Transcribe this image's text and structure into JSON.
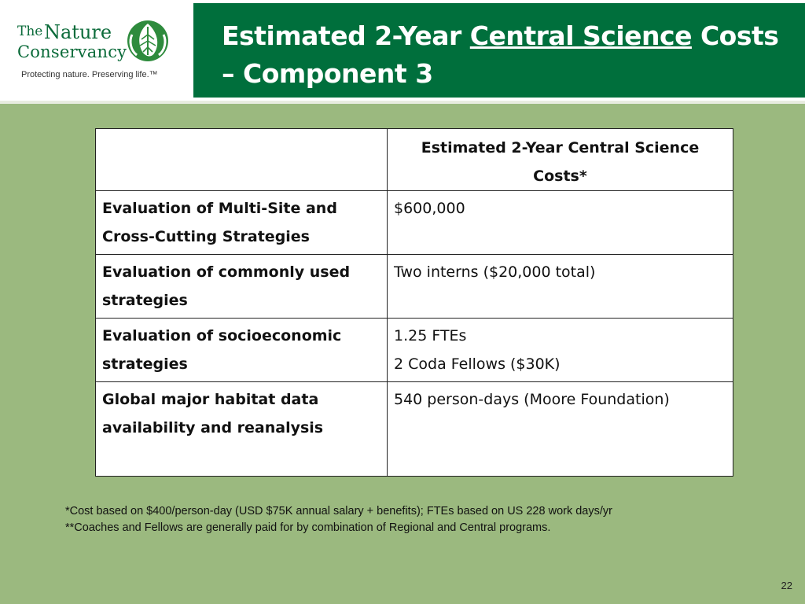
{
  "logo": {
    "the": "The",
    "nature": "Nature",
    "conservancy": "Conservancy",
    "tagline": "Protecting nature. Preserving life.™"
  },
  "title": {
    "part1": "Estimated 2-Year ",
    "underlined": "Central Science",
    "part2": " Costs – Component 3"
  },
  "table": {
    "header": [
      "",
      "Estimated 2-Year Central Science Costs*"
    ],
    "rows": [
      {
        "label": "Evaluation of Multi-Site and Cross-Cutting Strategies",
        "value": [
          "$600,000"
        ]
      },
      {
        "label": "Evaluation of commonly used strategies",
        "value": [
          "Two interns ($20,000 total)"
        ]
      },
      {
        "label": "Evaluation of socioeconomic strategies",
        "value": [
          "1.25 FTEs",
          "2 Coda Fellows ($30K)"
        ]
      },
      {
        "label": "Global major habitat data availability and reanalysis",
        "value": [
          "540 person-days (Moore Foundation)"
        ]
      }
    ]
  },
  "notes": [
    "*Cost based on $400/person-day (USD $75K annual salary + benefits); FTEs based on US 228 work days/yr",
    "**Coaches and Fellows are generally paid for by combination of Regional and Central programs."
  ],
  "page_number": "22",
  "colors": {
    "background": "#9bb97f",
    "title_bar": "#006f3c",
    "logo_green": "#0b6b3a"
  }
}
